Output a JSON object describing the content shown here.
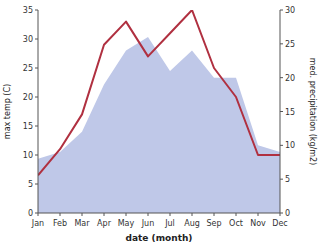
{
  "chart_data": {
    "type": "line",
    "categories": [
      "Jan",
      "Feb",
      "Mar",
      "Apr",
      "May",
      "Jun",
      "Jul",
      "Aug",
      "Sep",
      "Oct",
      "Nov",
      "Dec"
    ],
    "xlabel": "date (month)",
    "ylabel": "max temp (C)",
    "y2label": "med. precipitation (kg/m2)",
    "series": [
      {
        "type": "area",
        "axis": "y2",
        "color": "#bfc8e8",
        "values": [
          8,
          9,
          12,
          19,
          24,
          26,
          21,
          24,
          20,
          20,
          10,
          9
        ]
      },
      {
        "type": "line",
        "color": "#b03040",
        "values": [
          6.5,
          11,
          17,
          29,
          33,
          27,
          31,
          35,
          25,
          20,
          10,
          10
        ]
      }
    ],
    "ylim": [
      0,
      35
    ],
    "yticks": [
      0,
      5,
      10,
      15,
      20,
      25,
      30,
      35
    ],
    "y2lim": [
      0,
      30
    ],
    "y2ticks": [
      0,
      5,
      10,
      15,
      20,
      25,
      30
    ],
    "grid": false
  }
}
